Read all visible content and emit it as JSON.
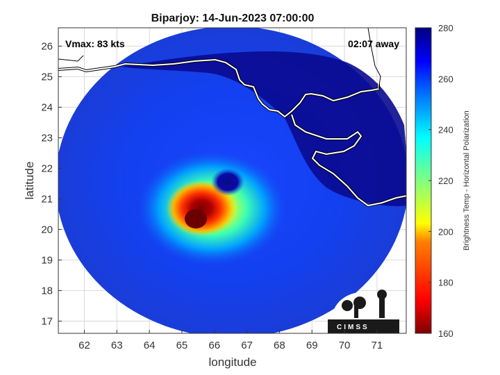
{
  "title": "Biparjoy: 14-Jun-2023 07:00:00",
  "annotations": {
    "vmax": "Vmax: 83 kts",
    "away": "02:07 away"
  },
  "axes": {
    "xlabel": "longitude",
    "ylabel": "latitude",
    "xlim": [
      61.2,
      71.9
    ],
    "ylim": [
      16.6,
      26.6
    ],
    "xticks": [
      "62",
      "63",
      "64",
      "65",
      "66",
      "67",
      "68",
      "69",
      "70",
      "71"
    ],
    "yticks": [
      "17",
      "18",
      "19",
      "20",
      "21",
      "22",
      "23",
      "24",
      "25",
      "26"
    ]
  },
  "map": {
    "swath_center": [
      66.7,
      21.2
    ],
    "storm_center": [
      66.35,
      21.5
    ],
    "cold_core_center": [
      65.5,
      20.3
    ]
  },
  "colorbar": {
    "label": "Brightness Temp - Horizontal Polarization",
    "range": [
      160,
      280
    ],
    "ticks": [
      "160",
      "180",
      "200",
      "220",
      "240",
      "260",
      "280"
    ],
    "colors": [
      "#7f0000",
      "#ff0000",
      "#ff8000",
      "#ffff00",
      "#80ff80",
      "#00ffff",
      "#0080ff",
      "#0000ff",
      "#00007f"
    ]
  },
  "logo": {
    "text": "CIMSS"
  }
}
